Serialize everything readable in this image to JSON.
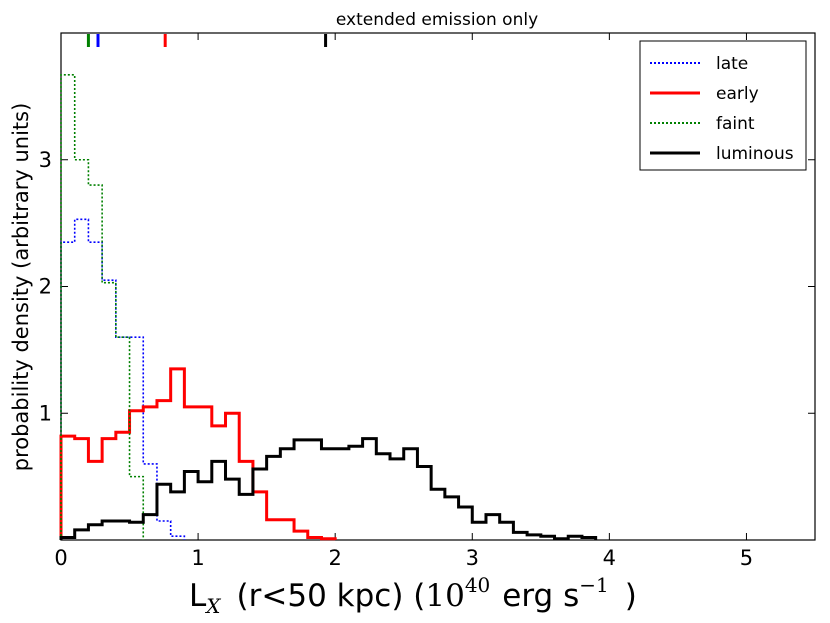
{
  "chart_data": {
    "type": "histogram",
    "title": "extended emission only",
    "xlabel": {
      "prefix": "L",
      "prefix_sub": "X",
      "middle": "(r<50 kpc) (",
      "mantissa": "10",
      "exp": "40",
      "unit": "erg s",
      "unit_exp": "−1",
      "suffix": ")"
    },
    "ylabel": "probability density (arbitrary units)",
    "xlim": [
      0,
      5.5
    ],
    "ylim": [
      0,
      4.0
    ],
    "xticks": [
      0,
      1,
      2,
      3,
      4,
      5
    ],
    "xtick_labels": [
      "0",
      "1",
      "2",
      "3",
      "4",
      "5"
    ],
    "yticks": [
      1,
      2,
      3
    ],
    "ytick_labels": [
      "1",
      "2",
      "3"
    ],
    "series": [
      {
        "name": "late",
        "color": "#0000ff",
        "style": "dotted",
        "x": [
          0,
          0.1,
          0.2,
          0.3,
          0.4,
          0.5,
          0.6,
          0.7,
          0.8,
          0.9
        ],
        "values": [
          2.35,
          2.53,
          2.35,
          2.05,
          1.6,
          1.6,
          0.6,
          0.15,
          0.03
        ]
      },
      {
        "name": "early",
        "color": "#ff0000",
        "style": "solid",
        "x": [
          0,
          0.1,
          0.2,
          0.3,
          0.4,
          0.5,
          0.6,
          0.7,
          0.8,
          0.9,
          1.0,
          1.1,
          1.2,
          1.3,
          1.4,
          1.5,
          1.6,
          1.7,
          1.8,
          1.9,
          2.0
        ],
        "values": [
          0.82,
          0.8,
          0.62,
          0.8,
          0.85,
          1.02,
          1.05,
          1.1,
          1.35,
          1.05,
          1.05,
          0.9,
          1.0,
          0.62,
          0.38,
          0.16,
          0.16,
          0.07,
          0.02,
          0.01
        ]
      },
      {
        "name": "faint",
        "color": "#008000",
        "style": "dotted",
        "x": [
          0,
          0.1,
          0.2,
          0.3,
          0.4,
          0.5,
          0.6
        ],
        "values": [
          3.67,
          3.0,
          2.8,
          2.03,
          1.6,
          0.5
        ]
      },
      {
        "name": "luminous",
        "color": "#000000",
        "style": "solid",
        "x": [
          0,
          0.1,
          0.2,
          0.3,
          0.4,
          0.5,
          0.6,
          0.7,
          0.8,
          0.9,
          1.0,
          1.1,
          1.2,
          1.3,
          1.4,
          1.5,
          1.6,
          1.7,
          1.8,
          1.9,
          2.0,
          2.1,
          2.2,
          2.3,
          2.4,
          2.5,
          2.6,
          2.7,
          2.8,
          2.9,
          3.0,
          3.1,
          3.2,
          3.3,
          3.4,
          3.5,
          3.6,
          3.7,
          3.8,
          3.9
        ],
        "values": [
          0.02,
          0.08,
          0.12,
          0.15,
          0.15,
          0.14,
          0.2,
          0.44,
          0.38,
          0.54,
          0.46,
          0.62,
          0.48,
          0.36,
          0.56,
          0.66,
          0.72,
          0.79,
          0.79,
          0.72,
          0.72,
          0.74,
          0.8,
          0.68,
          0.64,
          0.72,
          0.58,
          0.4,
          0.34,
          0.26,
          0.14,
          0.2,
          0.14,
          0.06,
          0.04,
          0.03,
          0.01,
          0.03,
          0.02
        ]
      }
    ],
    "markers": [
      {
        "series": "faint",
        "x": 0.2,
        "color": "#008000"
      },
      {
        "series": "late",
        "x": 0.27,
        "color": "#0000ff"
      },
      {
        "series": "early",
        "x": 0.76,
        "color": "#ff0000"
      },
      {
        "series": "luminous",
        "x": 1.93,
        "color": "#000000"
      }
    ],
    "legend": {
      "placement": "top-right",
      "entries": [
        {
          "label": "late",
          "color": "#0000ff",
          "style": "dotted"
        },
        {
          "label": "early",
          "color": "#ff0000",
          "style": "solid"
        },
        {
          "label": "faint",
          "color": "#008000",
          "style": "dotted"
        },
        {
          "label": "luminous",
          "color": "#000000",
          "style": "solid"
        }
      ]
    }
  }
}
